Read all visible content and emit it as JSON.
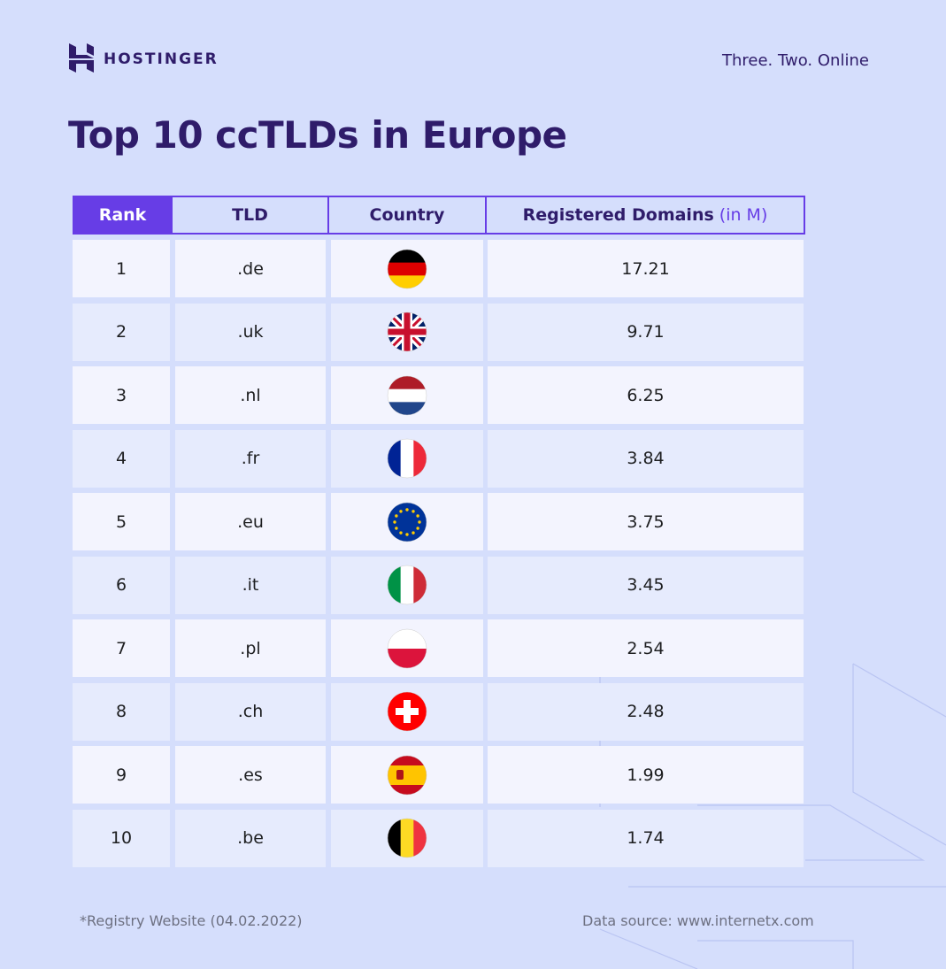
{
  "header": {
    "brand": "HOSTINGER",
    "tagline": "Three. Two. Online"
  },
  "title": "Top 10 ccTLDs in Europe",
  "table": {
    "columns": [
      "Rank",
      "TLD",
      "Country",
      {
        "label": "Registered Domains",
        "unit": "(in M)"
      }
    ],
    "rows": [
      [
        1,
        ".de",
        "17.21"
      ],
      [
        2,
        ".uk",
        "9.71"
      ],
      [
        3,
        ".nl",
        "6.25"
      ],
      [
        4,
        ".fr",
        "3.84"
      ],
      [
        5,
        ".eu",
        "3.75"
      ],
      [
        6,
        ".it",
        "3.45"
      ],
      [
        7,
        ".pl",
        "2.54"
      ],
      [
        8,
        ".ch",
        "2.48"
      ],
      [
        9,
        ".es",
        "1.99"
      ],
      [
        10,
        ".be",
        "1.74"
      ]
    ]
  },
  "footer": {
    "note": "*Registry Website (04.02.2022)",
    "source": "Data source: www.internetx.com"
  }
}
